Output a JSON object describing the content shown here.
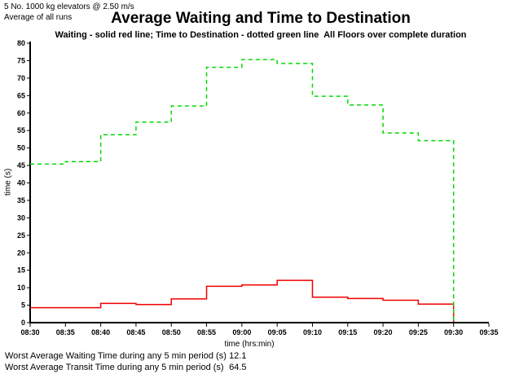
{
  "header": {
    "annotation_line1": "5 No. 1000 kg elevators @ 2.50 m/s",
    "annotation_line2": "Average of all runs",
    "title": "Average Waiting and Time to Destination",
    "subtitle": "Waiting - solid red line; Time to Destination - dotted green line  All Floors over complete duration"
  },
  "chart_data": {
    "type": "line",
    "subtype": "step",
    "title": "Average Waiting and Time to Destination",
    "xlabel": "time (hrs:min)",
    "ylabel": "time (s)",
    "ylim": [
      0,
      80
    ],
    "y_tick_step": 5,
    "x_ticks": [
      "08:30",
      "08:35",
      "08:40",
      "08:45",
      "08:50",
      "08:55",
      "09:00",
      "09:05",
      "09:10",
      "09:15",
      "09:20",
      "09:25",
      "09:30",
      "09:35"
    ],
    "period_start_times": [
      "08:30",
      "08:35",
      "08:40",
      "08:45",
      "08:50",
      "08:55",
      "09:00",
      "09:05",
      "09:10",
      "09:15",
      "09:20",
      "09:25"
    ],
    "grid": false,
    "legend_position": "described-in-subtitle",
    "series": [
      {
        "name": "Waiting",
        "line_style": "solid",
        "color": "#f00000",
        "values": [
          4.3,
          4.3,
          5.5,
          5.2,
          6.8,
          10.4,
          10.8,
          12.1,
          7.3,
          6.9,
          6.4,
          5.3
        ],
        "drops_to_zero_at": "09:30"
      },
      {
        "name": "Time to Destination",
        "line_style": "dotted",
        "color": "#00d900",
        "values": [
          45.4,
          46.1,
          53.8,
          57.4,
          62.0,
          73.1,
          75.3,
          74.2,
          64.8,
          62.3,
          54.3,
          52.1
        ],
        "drops_to_zero_at": "09:30"
      }
    ]
  },
  "footer": {
    "rows": [
      {
        "label": "Worst Average Waiting Time during any 5 min period (s)",
        "value": "12.1"
      },
      {
        "label": "Worst Average Transit Time during any 5 min period (s)",
        "value": "64.5"
      }
    ]
  }
}
